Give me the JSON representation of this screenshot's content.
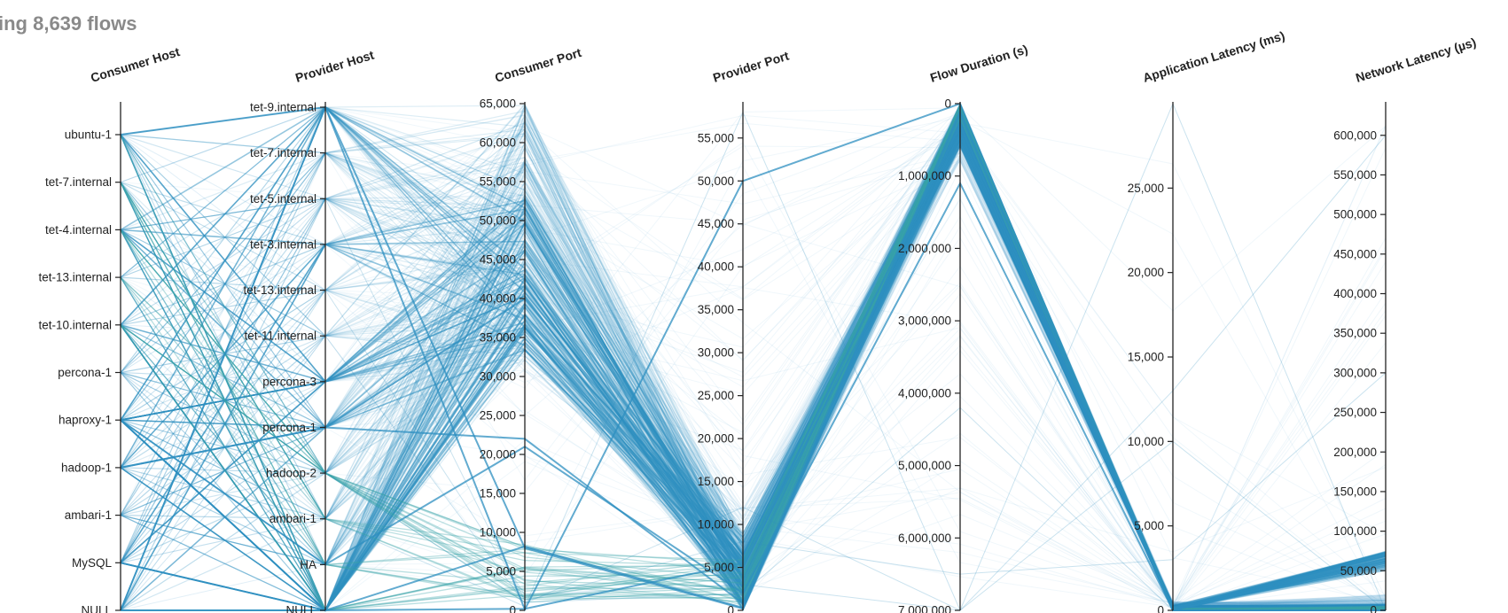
{
  "header": {
    "title": "ing 8,639 flows"
  },
  "chart_data": {
    "type": "parallel-coordinates",
    "total_flows": "8,639",
    "line_color": "#2e8fc0",
    "accent_color": "#3aa3a8",
    "axes": [
      {
        "name": "Consumer Host",
        "kind": "categorical",
        "categories": [
          "NULL",
          "MySQL",
          "ambari-1",
          "hadoop-1",
          "haproxy-1",
          "percona-1",
          "tet-10.internal",
          "tet-13.internal",
          "tet-4.internal",
          "tet-7.internal",
          "ubuntu-1"
        ]
      },
      {
        "name": "Provider Host",
        "kind": "categorical",
        "categories": [
          "NULL",
          "HA",
          "ambari-1",
          "hadoop-2",
          "percona-1",
          "percona-3",
          "tet-11.internal",
          "tet-13.internal",
          "tet-3.internal",
          "tet-5.internal",
          "tet-7.internal",
          "tet-9.internal"
        ]
      },
      {
        "name": "Consumer Port",
        "kind": "numeric",
        "domain": [
          0,
          65000
        ],
        "ticks": [
          0,
          5000,
          10000,
          15000,
          20000,
          25000,
          30000,
          35000,
          40000,
          45000,
          50000,
          55000,
          60000,
          65000
        ],
        "tick_labels": [
          "0",
          "5,000",
          "10,000",
          "15,000",
          "20,000",
          "25,000",
          "30,000",
          "35,000",
          "40,000",
          "45,000",
          "50,000",
          "55,000",
          "60,000",
          "65,000"
        ]
      },
      {
        "name": "Provider Port",
        "kind": "numeric",
        "domain": [
          0,
          59000
        ],
        "ticks": [
          0,
          5000,
          10000,
          15000,
          20000,
          25000,
          30000,
          35000,
          40000,
          45000,
          50000,
          55000
        ],
        "tick_labels": [
          "0",
          "5,000",
          "10,000",
          "15,000",
          "20,000",
          "25,000",
          "30,000",
          "35,000",
          "40,000",
          "45,000",
          "50,000",
          "55,000"
        ]
      },
      {
        "name": "Flow Duration (s)",
        "kind": "numeric",
        "domain": [
          0,
          7000000
        ],
        "inverted": true,
        "ticks": [
          0,
          1000000,
          2000000,
          3000000,
          4000000,
          5000000,
          6000000,
          7000000
        ],
        "tick_labels": [
          "0",
          "1,000,000",
          "2,000,000",
          "3,000,000",
          "4,000,000",
          "5,000,000",
          "6,000,000",
          "7,000,000"
        ]
      },
      {
        "name": "Application Latency (ms)",
        "kind": "numeric",
        "domain": [
          0,
          30000
        ],
        "ticks": [
          0,
          5000,
          10000,
          15000,
          20000,
          25000
        ],
        "tick_labels": [
          "0",
          "5,000",
          "10,000",
          "15,000",
          "20,000",
          "25,000"
        ]
      },
      {
        "name": "Network Latency (µs)",
        "kind": "numeric",
        "domain": [
          0,
          640000
        ],
        "ticks": [
          0,
          50000,
          100000,
          150000,
          200000,
          250000,
          300000,
          350000,
          400000,
          450000,
          500000,
          550000,
          600000
        ],
        "tick_labels": [
          "0",
          "50,000",
          "100,000",
          "150,000",
          "200,000",
          "250,000",
          "300,000",
          "350,000",
          "400,000",
          "450,000",
          "500,000",
          "550,000",
          "600,000"
        ]
      }
    ]
  }
}
